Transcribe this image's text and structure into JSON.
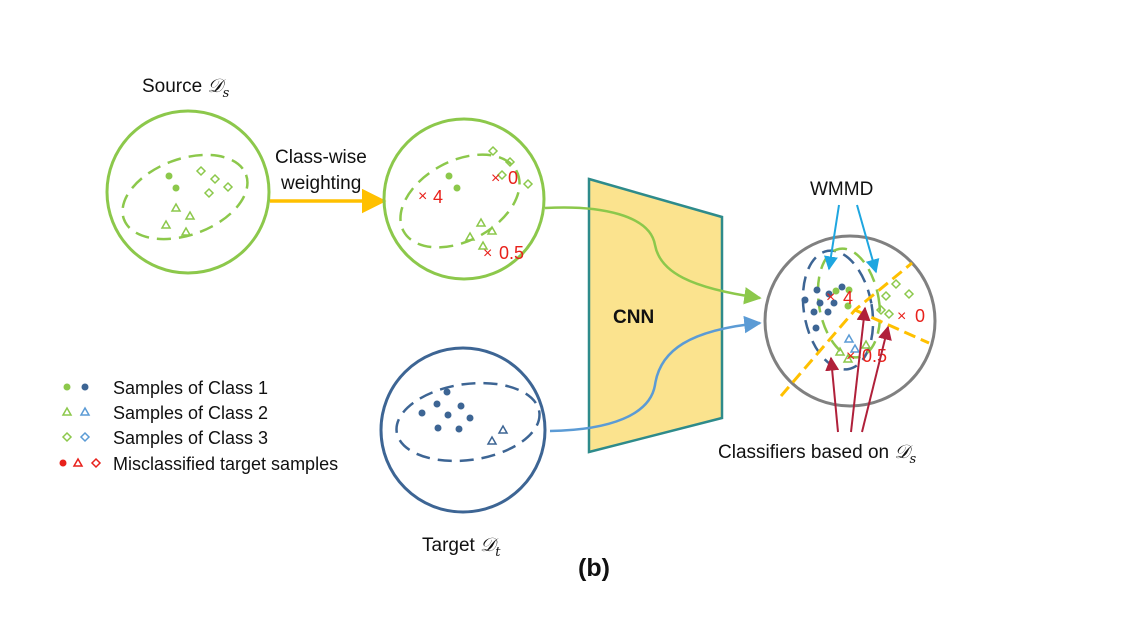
{
  "labels": {
    "source": "Source",
    "source_sym": "𝒟",
    "source_sub": "s",
    "target": "Target",
    "target_sym": "𝒟",
    "target_sub": "t",
    "classwise_line1": "Class-wise",
    "classwise_line2": "weighting",
    "cnn": "CNN",
    "wmmd": "WMMD",
    "classifiers": "Classifiers based on",
    "classifiers_sym": "𝒟",
    "classifiers_sub": "s",
    "caption": "(b)"
  },
  "weights": {
    "w4": "4",
    "w0": "0",
    "w05": "0.5",
    "r4": "4",
    "r0": "0",
    "r05": "0.5"
  },
  "legend": {
    "class1": "Samples of Class 1",
    "class2": "Samples of Class 2",
    "class3": "Samples of Class 3",
    "misclassified": "Misclassified target samples"
  },
  "colors": {
    "green": "#8cc84b",
    "blue": "#3d6594",
    "lightblue": "#5b9bd5",
    "red": "#e8211b",
    "gold": "#ffc000",
    "cnn_fill": "#fbe38e",
    "cnn_stroke": "#2e8b8b",
    "gray": "#808080",
    "crimson": "#b0203a"
  }
}
